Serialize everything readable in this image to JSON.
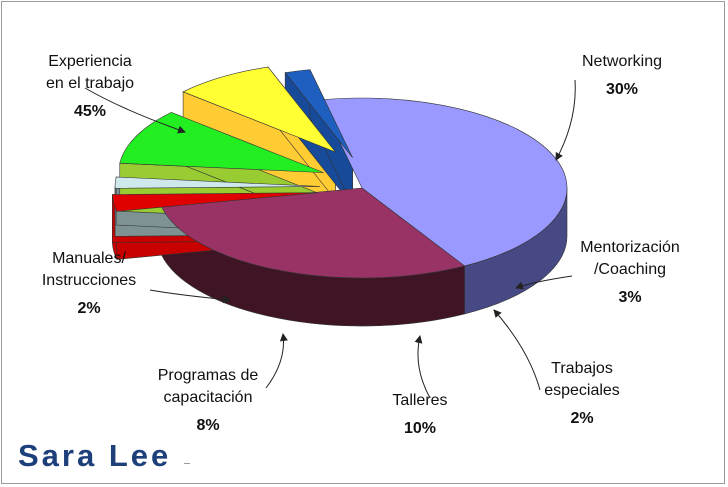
{
  "chart_data": {
    "type": "pie",
    "title": "",
    "slices": [
      {
        "label_lines": [
          "Experiencia",
          "en el trabajo"
        ],
        "value": 45,
        "value_label": "45%",
        "top": "#9999ff",
        "side": "#474985"
      },
      {
        "label_lines": [
          "Networking"
        ],
        "value": 30,
        "value_label": "30%",
        "top": "#993366",
        "side": "#3f1425"
      },
      {
        "label_lines": [
          "Mentorización",
          "/Coaching"
        ],
        "value": 3,
        "value_label": "3%",
        "top": "#e00000",
        "side": "#c80000"
      },
      {
        "label_lines": [
          "Trabajos",
          "especiales"
        ],
        "value": 2,
        "value_label": "2%",
        "top": "#cfe8ec",
        "side": "#7e9294"
      },
      {
        "label_lines": [
          "Talleres"
        ],
        "value": 10,
        "value_label": "10%",
        "top": "#22ee22",
        "side": "#99cc33"
      },
      {
        "label_lines": [
          "Programas de",
          "capacitación"
        ],
        "value": 8,
        "value_label": "8%",
        "top": "#ffff33",
        "side": "#ffcc33"
      },
      {
        "label_lines": [
          "Manuales/",
          "Instrucciones"
        ],
        "value": 2,
        "value_label": "2%",
        "top": "#1f5fc0",
        "side": "#174a99"
      }
    ]
  },
  "brand": {
    "name": "Sara Lee",
    "color": "#1d3f7a"
  }
}
